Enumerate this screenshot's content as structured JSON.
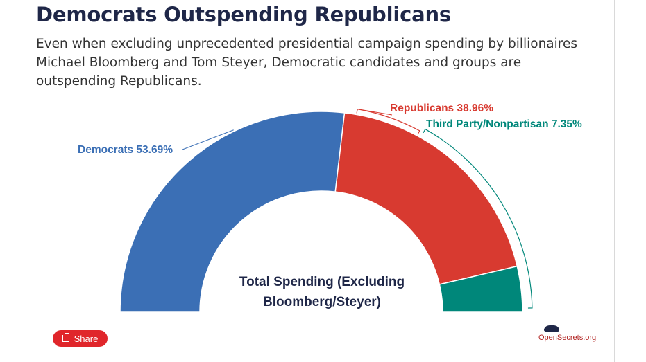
{
  "header": {
    "title": "Democrats Outspending Republicans",
    "subtitle": "Even when excluding unprecedented presidential campaign spending by billionaires Michael Bloomberg and Tom Steyer, Democratic candidates and groups are outspending Republicans."
  },
  "chart_data": {
    "type": "pie",
    "variant": "semi-donut",
    "center_label": "Total Spending (Excluding Bloomberg/Steyer)",
    "center_label_lines": [
      "Total Spending (Excluding",
      "Bloomberg/Steyer)"
    ],
    "slices": [
      {
        "name": "Democrats",
        "value": 53.69,
        "label": "Democrats 53.69%",
        "color": "#3b6fb5"
      },
      {
        "name": "Republicans",
        "value": 38.96,
        "label": "Republicans 38.96%",
        "color": "#d83a30"
      },
      {
        "name": "Third Party/Nonpartisan",
        "value": 7.35,
        "label": "Third Party/Nonpartisan 7.35%",
        "color": "#00877a"
      }
    ]
  },
  "footer": {
    "share_label": "Share",
    "logo_text": "OpenSecrets.org"
  },
  "colors": {
    "title": "#1f2748",
    "share_button": "#e0262b"
  }
}
